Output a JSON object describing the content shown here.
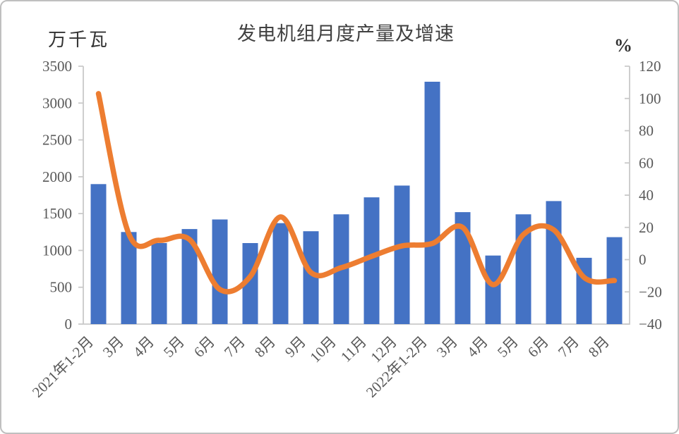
{
  "chart": {
    "title": "发电机组月度产量及增速",
    "left_axis_title": "万千瓦",
    "right_axis_title": "%",
    "colors": {
      "bar": "#4472C4",
      "line": "#ED7D31",
      "axis": "#C9C9C9",
      "tick_text": "#595959",
      "title_text": "#404040",
      "frame_border": "#BFBFBF"
    }
  },
  "chart_data": {
    "type": "bar",
    "title": "发电机组月度产量及增速",
    "categories": [
      "2021年1-2月",
      "3月",
      "4月",
      "5月",
      "6月",
      "7月",
      "8月",
      "9月",
      "10月",
      "11月",
      "12月",
      "2022年1-2月",
      "3月",
      "4月",
      "5月",
      "6月",
      "7月",
      "8月"
    ],
    "series": [
      {
        "name": "产量",
        "type": "bar",
        "axis": "left",
        "unit": "万千瓦",
        "values": [
          1900,
          1250,
          1100,
          1290,
          1420,
          1100,
          1370,
          1260,
          1490,
          1720,
          1880,
          3290,
          1520,
          930,
          1490,
          1670,
          900,
          1180
        ]
      },
      {
        "name": "增速",
        "type": "line",
        "axis": "right",
        "unit": "%",
        "values": [
          103,
          16,
          12,
          12.5,
          -18.5,
          -10.5,
          26.5,
          -8,
          -5,
          2,
          8.5,
          10,
          20,
          -15.5,
          15.5,
          18.5,
          -11,
          -13
        ]
      }
    ],
    "left_axis": {
      "label": "万千瓦",
      "min": 0,
      "max": 3500,
      "step": 500,
      "ticks": [
        0,
        500,
        1000,
        1500,
        2000,
        2500,
        3000,
        3500
      ]
    },
    "right_axis": {
      "label": "%",
      "min": -40,
      "max": 120,
      "step": 20,
      "ticks": [
        -40,
        -20,
        0,
        20,
        40,
        60,
        80,
        100,
        120
      ]
    },
    "grid": false,
    "legend": "none",
    "x_label_rotation_deg": 45
  }
}
